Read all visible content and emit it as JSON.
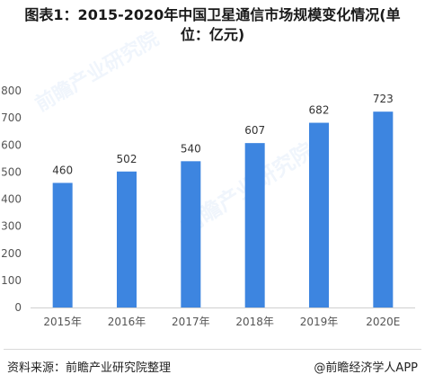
{
  "title": "图表1：2015-2020年中国卫星通信市场规模变化情况(单\n位：亿元)",
  "chart_data": {
    "type": "bar",
    "categories": [
      "2015年",
      "2016年",
      "2017年",
      "2018年",
      "2019年",
      "2020E"
    ],
    "values": [
      460,
      502,
      540,
      607,
      682,
      723
    ],
    "ylim": [
      0,
      800
    ],
    "yticks": [
      0,
      100,
      200,
      300,
      400,
      500,
      600,
      700,
      800
    ],
    "bar_color": "#3d85e0",
    "grid": false
  },
  "watermark": {
    "brand": "前瞻产业研究院",
    "sub": "前瞻产业研究院"
  },
  "footer": {
    "source": "资料来源：前瞻产业研究院整理",
    "credit": "@前瞻经济学人APP"
  }
}
